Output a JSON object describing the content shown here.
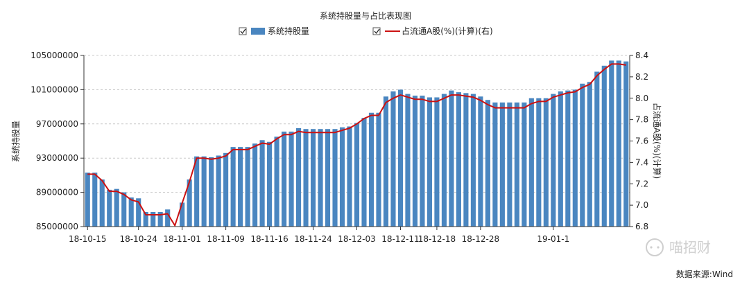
{
  "chart_data": {
    "type": "bar",
    "title": "系统持股量与占比表现图",
    "ylabel": "系统持股量",
    "y2label": "占流通A股(%)(计算)",
    "ylim": [
      85000000,
      105000000
    ],
    "y2lim": [
      6.8,
      8.4
    ],
    "yticks": [
      "85000000",
      "89000000",
      "93000000",
      "97000000",
      "101000000",
      "105000000"
    ],
    "y2ticks": [
      "6.8",
      "7.0",
      "7.2",
      "7.4",
      "7.6",
      "7.8",
      "8.0",
      "8.2",
      "8.4"
    ],
    "xtick_labels": [
      "18-10-15",
      "18-10-24",
      "18-11-01",
      "18-11-09",
      "18-11-16",
      "18-11-24",
      "18-12-03",
      "18-12-11",
      "18-12-18",
      "18-12-28",
      "19-01-1"
    ],
    "xtick_index": [
      0,
      7,
      13,
      19,
      25,
      31,
      37,
      43,
      48,
      54,
      64
    ],
    "grid": true,
    "legend_position": "top-center",
    "series": [
      {
        "name": "系统持股量",
        "kind": "bar",
        "color": "#4a86c0",
        "values": [
          91300000,
          91300000,
          90500000,
          89300000,
          89400000,
          89000000,
          88400000,
          88300000,
          86700000,
          86700000,
          86700000,
          87000000,
          84900000,
          87800000,
          90500000,
          93200000,
          93200000,
          93100000,
          93300000,
          93600000,
          94300000,
          94300000,
          94300000,
          94700000,
          95100000,
          94900000,
          95500000,
          96100000,
          96100000,
          96500000,
          96400000,
          96400000,
          96400000,
          96400000,
          96400000,
          96600000,
          96700000,
          97100000,
          97700000,
          98300000,
          98300000,
          100200000,
          100800000,
          101000000,
          100500000,
          100300000,
          100300000,
          100100000,
          100100000,
          100500000,
          100900000,
          100700000,
          100600000,
          100500000,
          100200000,
          99800000,
          99500000,
          99500000,
          99500000,
          99500000,
          99500000,
          100000000,
          100000000,
          100000000,
          100500000,
          100800000,
          100900000,
          101000000,
          101700000,
          101900000,
          103100000,
          103800000,
          104400000,
          104400000,
          104300000
        ]
      },
      {
        "name": "占流通A股(%)(计算)(右)",
        "kind": "line",
        "axis": "right",
        "color": "#cc1111",
        "values": [
          7.29,
          7.29,
          7.23,
          7.13,
          7.13,
          7.1,
          7.05,
          7.03,
          6.91,
          6.91,
          6.91,
          6.92,
          6.81,
          7.02,
          7.22,
          7.44,
          7.44,
          7.43,
          7.44,
          7.46,
          7.52,
          7.52,
          7.52,
          7.55,
          7.58,
          7.57,
          7.62,
          7.66,
          7.66,
          7.69,
          7.68,
          7.68,
          7.68,
          7.68,
          7.68,
          7.7,
          7.72,
          7.76,
          7.81,
          7.84,
          7.84,
          7.96,
          8.0,
          8.03,
          8.01,
          7.99,
          7.99,
          7.97,
          7.97,
          8.0,
          8.03,
          8.03,
          8.02,
          8.01,
          7.98,
          7.94,
          7.91,
          7.91,
          7.91,
          7.91,
          7.91,
          7.95,
          7.97,
          7.97,
          8.01,
          8.03,
          8.05,
          8.06,
          8.1,
          8.13,
          8.21,
          8.27,
          8.32,
          8.32,
          8.31
        ]
      }
    ]
  },
  "watermark": "喵招财",
  "source": "数据来源:Wind"
}
